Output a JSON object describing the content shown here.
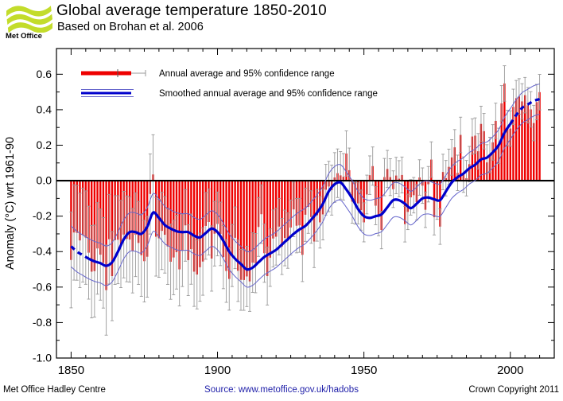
{
  "header": {
    "logo_text": "Met Office",
    "logo_color": "#c3dc2b",
    "title": "Global average temperature 1850-2010",
    "subtitle": "Based on Brohan et al. 2006"
  },
  "footer": {
    "left": "Met Office Hadley Centre",
    "center": "Source: www.metoffice.gov.uk/hadobs",
    "center_color": "#2222aa",
    "right": "Crown Copyright 2011"
  },
  "chart_data": {
    "type": "bar+line",
    "title": "Global average temperature 1850-2010",
    "xlabel": "",
    "ylabel": "Anomaly (°C) wrt 1961-90",
    "xlim": [
      1845,
      2015
    ],
    "ylim": [
      -1.0,
      0.745
    ],
    "x_major_ticks": [
      1850,
      1900,
      1950,
      2000
    ],
    "x_major_tick_labels": [
      "1850",
      "1900",
      "1950",
      "2000"
    ],
    "x_minor_step": 5,
    "y_major_ticks": [
      0.6,
      0.4,
      0.2,
      0.0,
      -0.2,
      -0.4,
      -0.6,
      -0.8,
      -1.0
    ],
    "y_major_tick_labels": [
      "0.6",
      "0.4",
      "0.2",
      "0.0",
      "-0.2",
      "-0.4",
      "-0.6",
      "-0.8",
      "-1.0"
    ],
    "y_minor_step": 0.1,
    "grid": "off",
    "legend_position": "top-left-inside",
    "legend": [
      {
        "label": "Annual average and 95% confidence range",
        "type": "bar"
      },
      {
        "label": "Smoothed annual average and 95% confidence range",
        "type": "line"
      }
    ],
    "colors": {
      "bar": "#ee0000",
      "whisker": "#999999",
      "smoothed": "#0000cc",
      "smoothed_ci": "#6666cc",
      "zero_line": "#000000",
      "axis": "#000000"
    },
    "start_year": 1850,
    "annual": [
      -0.447,
      -0.292,
      -0.294,
      -0.337,
      -0.307,
      -0.321,
      -0.406,
      -0.513,
      -0.51,
      -0.382,
      -0.417,
      -0.463,
      -0.617,
      -0.33,
      -0.538,
      -0.335,
      -0.333,
      -0.357,
      -0.304,
      -0.328,
      -0.332,
      -0.395,
      -0.305,
      -0.351,
      -0.42,
      -0.454,
      -0.429,
      -0.075,
      0.035,
      -0.316,
      -0.325,
      -0.283,
      -0.305,
      -0.371,
      -0.457,
      -0.433,
      -0.403,
      -0.5,
      -0.393,
      -0.252,
      -0.448,
      -0.386,
      -0.513,
      -0.529,
      -0.488,
      -0.456,
      -0.255,
      -0.233,
      -0.439,
      -0.299,
      -0.244,
      -0.3,
      -0.431,
      -0.509,
      -0.554,
      -0.422,
      -0.322,
      -0.508,
      -0.559,
      -0.56,
      -0.54,
      -0.568,
      -0.462,
      -0.465,
      -0.261,
      -0.189,
      -0.409,
      -0.538,
      -0.434,
      -0.326,
      -0.316,
      -0.259,
      -0.371,
      -0.323,
      -0.338,
      -0.264,
      -0.162,
      -0.254,
      -0.252,
      -0.418,
      -0.192,
      -0.148,
      -0.205,
      -0.343,
      -0.195,
      -0.235,
      -0.19,
      -0.051,
      -0.033,
      -0.053,
      0.018,
      0.042,
      0.03,
      0.022,
      0.153,
      0.059,
      -0.118,
      -0.126,
      -0.128,
      -0.166,
      -0.235,
      -0.078,
      0.031,
      0.082,
      -0.141,
      -0.204,
      -0.278,
      0.02,
      0.066,
      0.02,
      -0.048,
      0.029,
      0.011,
      0.032,
      -0.245,
      -0.176,
      -0.094,
      -0.082,
      -0.122,
      0.018,
      -0.028,
      -0.164,
      -0.02,
      0.119,
      -0.206,
      -0.118,
      -0.259,
      0.049,
      0.014,
      0.078,
      0.131,
      0.188,
      0.044,
      0.258,
      0.034,
      0.014,
      0.093,
      0.249,
      0.254,
      0.166,
      0.32,
      0.279,
      0.103,
      0.145,
      0.216,
      0.337,
      0.196,
      0.436,
      0.548,
      0.297,
      0.294,
      0.416,
      0.465,
      0.475,
      0.447,
      0.482,
      0.425,
      0.402,
      0.325,
      0.443,
      0.499
    ],
    "annual_ci95_halfwidth_breakpoints": [
      [
        1850,
        0.27
      ],
      [
        1865,
        0.25
      ],
      [
        1880,
        0.22
      ],
      [
        1900,
        0.18
      ],
      [
        1920,
        0.16
      ],
      [
        1940,
        0.14
      ],
      [
        1950,
        0.11
      ],
      [
        1965,
        0.1
      ],
      [
        2010,
        0.1
      ]
    ],
    "smoothed": [
      [
        1850,
        -0.37
      ],
      [
        1852,
        -0.4
      ],
      [
        1854,
        -0.42
      ],
      [
        1856,
        -0.44
      ],
      [
        1858,
        -0.455
      ],
      [
        1860,
        -0.465
      ],
      [
        1862,
        -0.48
      ],
      [
        1864,
        -0.46
      ],
      [
        1866,
        -0.4
      ],
      [
        1868,
        -0.33
      ],
      [
        1870,
        -0.29
      ],
      [
        1872,
        -0.29
      ],
      [
        1874,
        -0.3
      ],
      [
        1876,
        -0.26
      ],
      [
        1878,
        -0.18
      ],
      [
        1880,
        -0.21
      ],
      [
        1882,
        -0.25
      ],
      [
        1884,
        -0.27
      ],
      [
        1886,
        -0.285
      ],
      [
        1888,
        -0.29
      ],
      [
        1890,
        -0.29
      ],
      [
        1892,
        -0.31
      ],
      [
        1894,
        -0.32
      ],
      [
        1896,
        -0.295
      ],
      [
        1898,
        -0.27
      ],
      [
        1900,
        -0.29
      ],
      [
        1902,
        -0.34
      ],
      [
        1904,
        -0.4
      ],
      [
        1906,
        -0.44
      ],
      [
        1908,
        -0.47
      ],
      [
        1910,
        -0.5
      ],
      [
        1912,
        -0.49
      ],
      [
        1914,
        -0.46
      ],
      [
        1916,
        -0.43
      ],
      [
        1918,
        -0.41
      ],
      [
        1920,
        -0.39
      ],
      [
        1922,
        -0.36
      ],
      [
        1924,
        -0.33
      ],
      [
        1926,
        -0.3
      ],
      [
        1928,
        -0.275
      ],
      [
        1930,
        -0.255
      ],
      [
        1932,
        -0.22
      ],
      [
        1934,
        -0.18
      ],
      [
        1936,
        -0.13
      ],
      [
        1938,
        -0.06
      ],
      [
        1940,
        -0.02
      ],
      [
        1942,
        -0.01
      ],
      [
        1944,
        -0.05
      ],
      [
        1946,
        -0.1
      ],
      [
        1948,
        -0.16
      ],
      [
        1950,
        -0.2
      ],
      [
        1952,
        -0.21
      ],
      [
        1954,
        -0.2
      ],
      [
        1956,
        -0.19
      ],
      [
        1958,
        -0.15
      ],
      [
        1960,
        -0.11
      ],
      [
        1962,
        -0.11
      ],
      [
        1964,
        -0.13
      ],
      [
        1966,
        -0.155
      ],
      [
        1968,
        -0.13
      ],
      [
        1970,
        -0.1
      ],
      [
        1972,
        -0.095
      ],
      [
        1974,
        -0.105
      ],
      [
        1976,
        -0.11
      ],
      [
        1978,
        -0.06
      ],
      [
        1980,
        -0.01
      ],
      [
        1982,
        0.02
      ],
      [
        1984,
        0.04
      ],
      [
        1986,
        0.07
      ],
      [
        1988,
        0.09
      ],
      [
        1990,
        0.12
      ],
      [
        1992,
        0.13
      ],
      [
        1994,
        0.16
      ],
      [
        1996,
        0.2
      ],
      [
        1998,
        0.27
      ],
      [
        2000,
        0.32
      ],
      [
        2002,
        0.37
      ],
      [
        2004,
        0.41
      ],
      [
        2006,
        0.43
      ],
      [
        2008,
        0.45
      ],
      [
        2010,
        0.46
      ]
    ],
    "smoothed_ci95_halfwidth_breakpoints": [
      [
        1850,
        0.115
      ],
      [
        1900,
        0.1
      ],
      [
        1950,
        0.1
      ],
      [
        1980,
        0.09
      ],
      [
        2010,
        0.085
      ]
    ],
    "smoothed_dash_before": 1856,
    "smoothed_dash_after": 2000
  }
}
